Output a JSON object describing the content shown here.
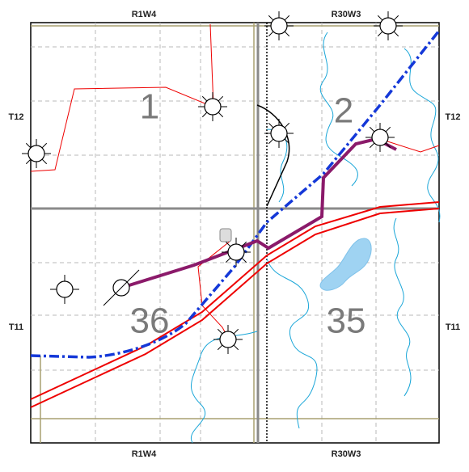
{
  "grid_labels": {
    "top": [
      "R1W4",
      "R30W3"
    ],
    "bottom": [
      "R1W4",
      "R30W3"
    ],
    "left": [
      "T12",
      "T11"
    ],
    "right": [
      "T12",
      "T11"
    ]
  },
  "sections": [
    "1",
    "2",
    "36",
    "35"
  ]
}
